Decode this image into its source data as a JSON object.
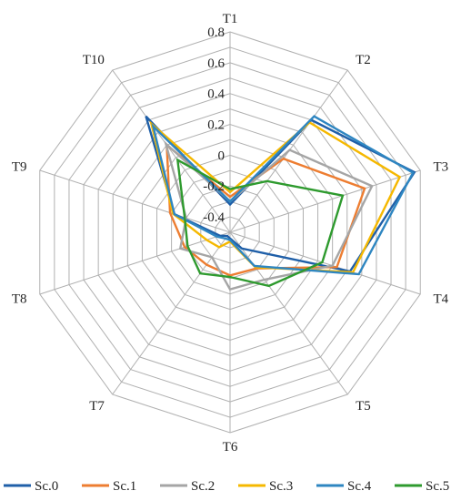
{
  "chart_data": {
    "type": "radar",
    "categories": [
      "T1",
      "T2",
      "T3",
      "T4",
      "T5",
      "T6",
      "T7",
      "T8",
      "T9",
      "T10"
    ],
    "rlim": [
      -0.5,
      0.8
    ],
    "ticks": [
      "-0.4",
      "-0.2",
      "0",
      "0.2",
      "0.4",
      "0.6",
      "0.8"
    ],
    "tick_values": [
      -0.4,
      -0.2,
      0,
      0.2,
      0.4,
      0.6,
      0.8
    ],
    "grid": true,
    "legend_position": "bottom",
    "series": [
      {
        "name": "Sc.0",
        "color": "#1f5fa8",
        "values": [
          -0.32,
          0.4,
          0.76,
          0.32,
          -0.37,
          -0.46,
          -0.47,
          -0.43,
          -0.12,
          0.43
        ]
      },
      {
        "name": "Sc.1",
        "color": "#ed7d31",
        "values": [
          -0.27,
          0.09,
          0.42,
          0.23,
          -0.21,
          -0.22,
          -0.24,
          -0.19,
          -0.09,
          0.2
        ]
      },
      {
        "name": "Sc.2",
        "color": "#a5a5a5",
        "values": [
          -0.3,
          0.16,
          0.47,
          0.2,
          -0.12,
          -0.13,
          -0.3,
          -0.16,
          -0.2,
          0.21
        ]
      },
      {
        "name": "Sc.3",
        "color": "#f5b800",
        "values": [
          -0.24,
          0.38,
          0.66,
          0.34,
          -0.22,
          -0.44,
          -0.38,
          -0.34,
          -0.11,
          0.37
        ]
      },
      {
        "name": "Sc.4",
        "color": "#2e86c1",
        "values": [
          -0.3,
          0.43,
          0.75,
          0.38,
          -0.23,
          -0.45,
          -0.45,
          -0.41,
          -0.12,
          0.35
        ]
      },
      {
        "name": "Sc.5",
        "color": "#2e9a2e",
        "values": [
          -0.22,
          -0.09,
          0.27,
          0.13,
          -0.07,
          -0.21,
          -0.17,
          -0.21,
          -0.19,
          0.08
        ]
      }
    ]
  }
}
